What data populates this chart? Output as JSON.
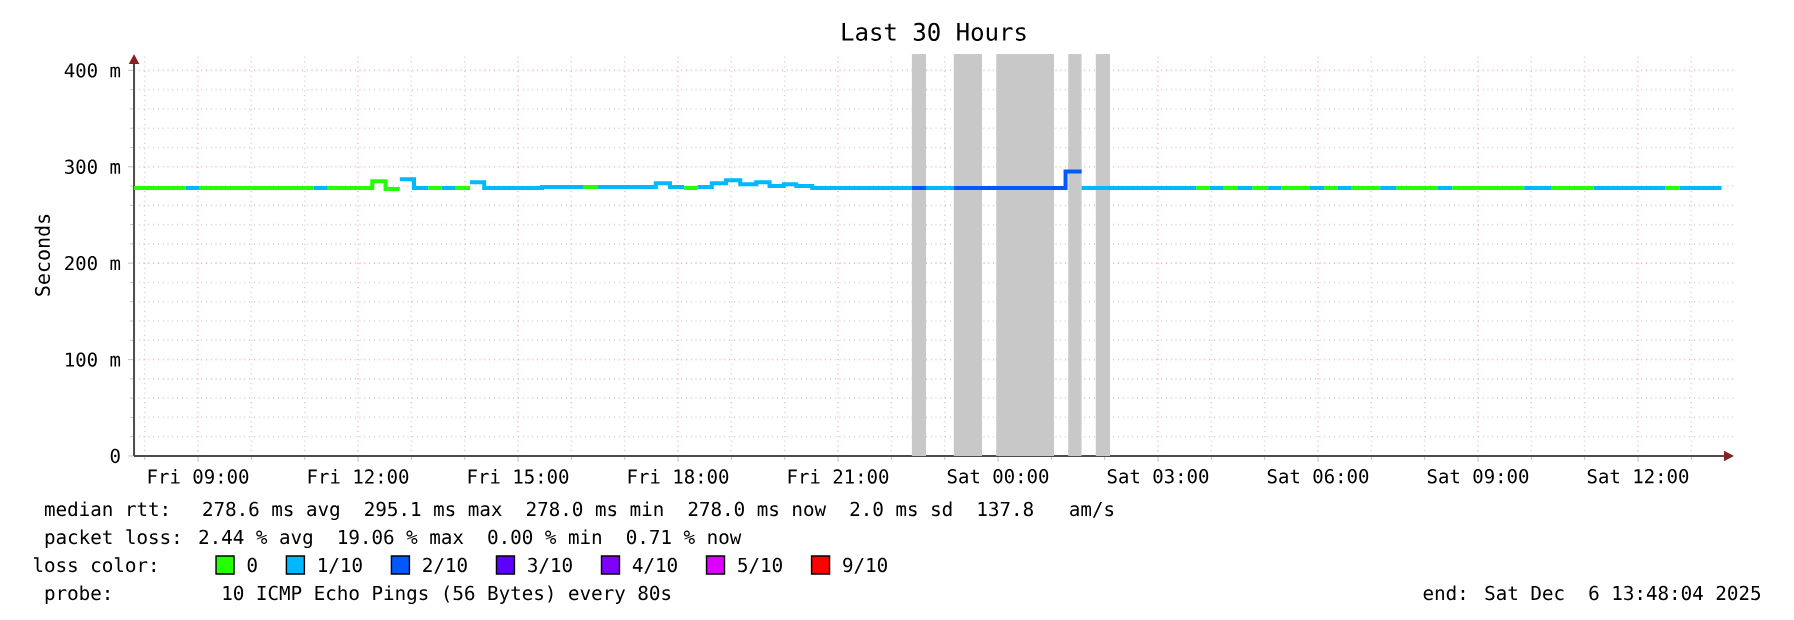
{
  "chart_data": {
    "type": "step",
    "title": "Last 30 Hours",
    "ylabel": "Seconds",
    "legend_title": "loss color:",
    "legend": "bottom",
    "grid": true,
    "xlim": [
      "2025-12-05T07:48",
      "2025-12-06T13:48"
    ],
    "ylim": [
      0,
      417
    ],
    "xticks": [
      {
        "value": "2025-12-05T09:00",
        "label": "Fri 09:00"
      },
      {
        "value": "2025-12-05T12:00",
        "label": "Fri 12:00"
      },
      {
        "value": "2025-12-05T15:00",
        "label": "Fri 15:00"
      },
      {
        "value": "2025-12-05T18:00",
        "label": "Fri 18:00"
      },
      {
        "value": "2025-12-05T21:00",
        "label": "Fri 21:00"
      },
      {
        "value": "2025-12-06T00:00",
        "label": "Sat 00:00"
      },
      {
        "value": "2025-12-06T03:00",
        "label": "Sat 03:00"
      },
      {
        "value": "2025-12-06T06:00",
        "label": "Sat 06:00"
      },
      {
        "value": "2025-12-06T09:00",
        "label": "Sat 09:00"
      },
      {
        "value": "2025-12-06T12:00",
        "label": "Sat 12:00"
      }
    ],
    "yticks": [
      0,
      {
        "value": 100,
        "label": "100 m"
      },
      {
        "value": 200,
        "label": "200 m"
      },
      {
        "value": 300,
        "label": "300 m"
      },
      {
        "value": 400,
        "label": "400 m"
      }
    ],
    "bands": [
      {
        "axis": "x",
        "from": "2025-12-05T22:23",
        "to": "2025-12-05T22:39",
        "color": "#c8c8c8"
      },
      {
        "axis": "x",
        "from": "2025-12-05T23:10",
        "to": "2025-12-05T23:42",
        "color": "#c8c8c8"
      },
      {
        "axis": "x",
        "from": "2025-12-05T23:58",
        "to": "2025-12-06T01:03",
        "color": "#c8c8c8"
      },
      {
        "axis": "x",
        "from": "2025-12-06T01:19",
        "to": "2025-12-06T01:34",
        "color": "#c8c8c8"
      },
      {
        "axis": "x",
        "from": "2025-12-06T01:50",
        "to": "2025-12-06T02:06",
        "color": "#c8c8c8"
      }
    ],
    "series": [
      {
        "name": "0",
        "color": "#26ff00",
        "x": [
          "2025-12-05T07:48",
          "2025-12-05T08:46",
          "2025-12-05T09:02",
          "2025-12-05T11:10",
          "2025-12-05T11:26",
          "2025-12-05T12:16",
          "2025-12-05T12:31",
          "2025-12-05T12:47",
          "2025-12-05T13:19",
          "2025-12-05T13:34",
          "2025-12-05T13:50",
          "2025-12-05T14:06",
          "2025-12-05T16:14",
          "2025-12-05T16:30",
          "2025-12-05T18:07",
          "2025-12-05T18:22",
          "2025-12-06T03:43",
          "2025-12-06T03:58",
          "2025-12-06T04:14",
          "2025-12-06T04:30",
          "2025-12-06T04:46",
          "2025-12-06T05:04",
          "2025-12-06T05:19",
          "2025-12-06T05:51",
          "2025-12-06T06:07",
          "2025-12-06T06:22",
          "2025-12-06T06:38",
          "2025-12-06T07:10",
          "2025-12-06T07:28",
          "2025-12-06T08:15",
          "2025-12-06T08:31",
          "2025-12-06T09:52",
          "2025-12-06T10:23",
          "2025-12-06T11:10",
          "2025-12-06T12:31",
          "2025-12-06T12:47"
        ],
        "values": [
          278,
          null,
          278,
          null,
          278,
          285,
          277,
          null,
          278,
          null,
          278,
          null,
          279,
          null,
          278,
          null,
          278,
          null,
          278,
          null,
          278,
          null,
          278,
          null,
          278,
          null,
          278,
          null,
          278,
          null,
          278,
          null,
          278,
          null,
          278,
          278
        ]
      },
      {
        "name": "1/10",
        "color": "#00b8ff",
        "x": [
          "2025-12-05T08:46",
          "2025-12-05T09:02",
          "2025-12-05T11:10",
          "2025-12-05T11:26",
          "2025-12-05T12:47",
          "2025-12-05T13:03",
          "2025-12-05T13:19",
          "2025-12-05T13:34",
          "2025-12-05T13:50",
          "2025-12-05T14:06",
          "2025-12-05T14:22",
          "2025-12-05T15:27",
          "2025-12-05T16:14",
          "2025-12-05T16:30",
          "2025-12-05T17:35",
          "2025-12-05T17:51",
          "2025-12-05T18:07",
          "2025-12-05T18:22",
          "2025-12-05T18:38",
          "2025-12-05T18:54",
          "2025-12-05T19:10",
          "2025-12-05T19:28",
          "2025-12-05T19:43",
          "2025-12-05T19:59",
          "2025-12-05T20:13",
          "2025-12-05T20:31",
          "2025-12-05T22:23",
          "2025-12-05T22:39",
          "2025-12-05T23:10",
          "2025-12-06T01:34",
          "2025-12-06T03:43",
          "2025-12-06T03:58",
          "2025-12-06T04:14",
          "2025-12-06T04:30",
          "2025-12-06T04:46",
          "2025-12-06T05:04",
          "2025-12-06T05:19",
          "2025-12-06T05:51",
          "2025-12-06T06:07",
          "2025-12-06T06:22",
          "2025-12-06T06:38",
          "2025-12-06T07:10",
          "2025-12-06T07:28",
          "2025-12-06T08:15",
          "2025-12-06T08:31",
          "2025-12-06T09:52",
          "2025-12-06T10:23",
          "2025-12-06T11:10",
          "2025-12-06T12:31",
          "2025-12-06T12:47",
          "2025-12-06T13:34"
        ],
        "values": [
          278,
          null,
          278,
          null,
          287,
          278,
          null,
          278,
          null,
          284,
          278,
          279,
          null,
          279,
          283,
          279,
          null,
          279,
          283,
          286,
          282,
          284,
          280,
          282,
          280,
          278,
          null,
          278,
          null,
          278,
          null,
          278,
          null,
          278,
          null,
          278,
          null,
          278,
          null,
          278,
          null,
          278,
          null,
          278,
          null,
          278,
          null,
          278,
          null,
          278,
          278
        ]
      },
      {
        "name": "2/10",
        "color": "#0059ff",
        "x": [
          "2025-12-05T22:23",
          "2025-12-05T22:39",
          "2025-12-05T23:10",
          "2025-12-06T01:16",
          "2025-12-06T01:34"
        ],
        "values": [
          278,
          null,
          278,
          295,
          295
        ]
      },
      {
        "name": "3/10",
        "color": "#5e00ff"
      },
      {
        "name": "4/10",
        "color": "#7e00ff"
      },
      {
        "name": "5/10",
        "color": "#dd00ff"
      },
      {
        "name": "9/10",
        "color": "#ff0000"
      }
    ],
    "annotations": [
      "median rtt:  278.6 ms avg  295.1 ms max  278.0 ms min  278.0 ms now  2.0 ms sd  137.8   am/s",
      "packet loss: 2.44 % avg  19.06 % max  0.00 % min  0.71 % now",
      "probe:       10 ICMP Echo Pings (56 Bytes) every 80s",
      "end: Sat Dec  6 13:48:04 2025"
    ]
  }
}
